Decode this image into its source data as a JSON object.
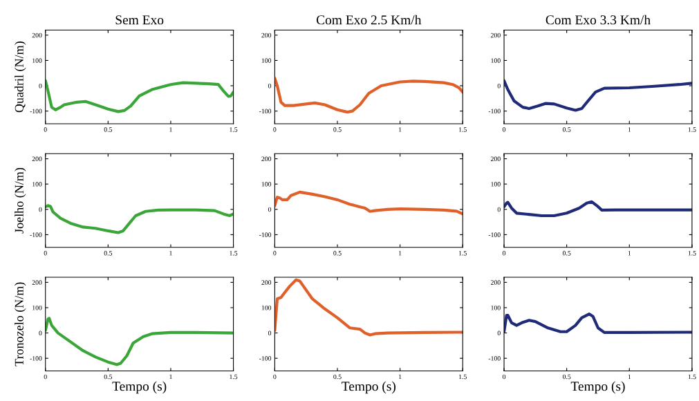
{
  "chart_data": [
    {
      "type": "line",
      "title": "Sem Exo",
      "ylabel": "Quadril (N/m)",
      "xlim": [
        0,
        1.5
      ],
      "ylim": [
        -150,
        220
      ],
      "xticks": [
        0,
        0.5,
        1,
        1.5
      ],
      "yticks": [
        -100,
        0,
        100,
        200
      ],
      "x": [
        0,
        0.02,
        0.05,
        0.08,
        0.12,
        0.15,
        0.25,
        0.32,
        0.4,
        0.5,
        0.58,
        0.63,
        0.68,
        0.75,
        0.85,
        1.0,
        1.1,
        1.2,
        1.3,
        1.38,
        1.42,
        1.46,
        1.48,
        1.5
      ],
      "series": [
        {
          "color": "#3aa63a",
          "values": [
            20,
            -20,
            -85,
            -95,
            -85,
            -75,
            -65,
            -62,
            -75,
            -92,
            -102,
            -98,
            -80,
            -40,
            -15,
            5,
            12,
            10,
            8,
            5,
            -20,
            -42,
            -40,
            -25
          ]
        }
      ]
    },
    {
      "type": "line",
      "title": "Com Exo 2.5 Km/h",
      "xlim": [
        0,
        1.5
      ],
      "ylim": [
        -150,
        220
      ],
      "xticks": [
        0,
        0.5,
        1,
        1.5
      ],
      "yticks": [
        -100,
        0,
        100,
        200
      ],
      "x": [
        0,
        0.02,
        0.05,
        0.08,
        0.15,
        0.25,
        0.32,
        0.4,
        0.5,
        0.58,
        0.62,
        0.68,
        0.75,
        0.85,
        1.0,
        1.1,
        1.2,
        1.35,
        1.42,
        1.47,
        1.5
      ],
      "series": [
        {
          "color": "#e0602a",
          "values": [
            30,
            0,
            -65,
            -78,
            -78,
            -72,
            -68,
            -75,
            -95,
            -104,
            -100,
            -75,
            -30,
            0,
            15,
            18,
            17,
            12,
            5,
            -8,
            -25
          ]
        }
      ]
    },
    {
      "type": "line",
      "title": "Com Exo 3.3 Km/h",
      "xlim": [
        0,
        1.5
      ],
      "ylim": [
        -150,
        220
      ],
      "xticks": [
        0,
        0.5,
        1,
        1.5
      ],
      "yticks": [
        -100,
        0,
        100,
        200
      ],
      "x": [
        0,
        0.03,
        0.08,
        0.15,
        0.2,
        0.27,
        0.33,
        0.4,
        0.5,
        0.57,
        0.62,
        0.67,
        0.73,
        0.8,
        1.0,
        1.2,
        1.4,
        1.5
      ],
      "series": [
        {
          "color": "#1f2a78",
          "values": [
            20,
            -15,
            -60,
            -85,
            -90,
            -80,
            -70,
            -72,
            -88,
            -97,
            -90,
            -60,
            -25,
            -10,
            -8,
            -2,
            5,
            10
          ]
        }
      ]
    },
    {
      "type": "line",
      "ylabel": "Joelho (N/m)",
      "xlim": [
        0,
        1.5
      ],
      "ylim": [
        -150,
        220
      ],
      "xticks": [
        0,
        0.5,
        1,
        1.5
      ],
      "yticks": [
        -100,
        0,
        100,
        200
      ],
      "x": [
        0,
        0.02,
        0.04,
        0.06,
        0.12,
        0.2,
        0.3,
        0.4,
        0.5,
        0.58,
        0.62,
        0.67,
        0.72,
        0.8,
        0.9,
        1.0,
        1.2,
        1.35,
        1.42,
        1.47,
        1.5
      ],
      "series": [
        {
          "color": "#3aa63a",
          "values": [
            10,
            15,
            12,
            -10,
            -35,
            -55,
            -70,
            -75,
            -85,
            -92,
            -85,
            -55,
            -25,
            -8,
            -3,
            -2,
            -2,
            -5,
            -18,
            -25,
            -18
          ]
        }
      ]
    },
    {
      "type": "line",
      "xlim": [
        0,
        1.5
      ],
      "ylim": [
        -150,
        220
      ],
      "xticks": [
        0,
        0.5,
        1,
        1.5
      ],
      "yticks": [
        -100,
        0,
        100,
        200
      ],
      "x": [
        0,
        0.02,
        0.04,
        0.06,
        0.1,
        0.13,
        0.2,
        0.3,
        0.4,
        0.5,
        0.6,
        0.68,
        0.72,
        0.76,
        0.8,
        0.9,
        1.0,
        1.2,
        1.35,
        1.45,
        1.5
      ],
      "series": [
        {
          "color": "#e0602a",
          "values": [
            15,
            48,
            45,
            38,
            38,
            55,
            68,
            60,
            50,
            38,
            20,
            10,
            5,
            -8,
            -5,
            0,
            2,
            0,
            -3,
            -7,
            -18
          ]
        }
      ]
    },
    {
      "type": "line",
      "xlim": [
        0,
        1.5
      ],
      "ylim": [
        -150,
        220
      ],
      "xticks": [
        0,
        0.5,
        1,
        1.5
      ],
      "yticks": [
        -100,
        0,
        100,
        200
      ],
      "x": [
        0,
        0.02,
        0.03,
        0.06,
        0.1,
        0.2,
        0.3,
        0.4,
        0.5,
        0.6,
        0.66,
        0.7,
        0.74,
        0.78,
        0.9,
        1.2,
        1.5
      ],
      "series": [
        {
          "color": "#1f2a78",
          "values": [
            10,
            25,
            28,
            5,
            -15,
            -20,
            -25,
            -25,
            -15,
            5,
            25,
            30,
            15,
            -3,
            -2,
            -2,
            -2
          ]
        }
      ]
    },
    {
      "type": "line",
      "ylabel": "Tronozelo (N/m)",
      "xlabel": "Tempo (s)",
      "xlim": [
        0,
        1.5
      ],
      "ylim": [
        -150,
        220
      ],
      "xticks": [
        0,
        0.5,
        1,
        1.5
      ],
      "yticks": [
        -100,
        0,
        100,
        200
      ],
      "x": [
        0,
        0.02,
        0.03,
        0.05,
        0.1,
        0.2,
        0.3,
        0.4,
        0.5,
        0.57,
        0.6,
        0.65,
        0.7,
        0.78,
        0.85,
        1.0,
        1.2,
        1.5
      ],
      "series": [
        {
          "color": "#3aa63a",
          "values": [
            10,
            55,
            58,
            30,
            0,
            -35,
            -70,
            -95,
            -115,
            -125,
            -120,
            -90,
            -40,
            -15,
            -3,
            2,
            2,
            0
          ]
        }
      ]
    },
    {
      "type": "line",
      "xlabel": "Tempo (s)",
      "xlim": [
        0,
        1.5
      ],
      "ylim": [
        -150,
        220
      ],
      "xticks": [
        0,
        0.5,
        1,
        1.5
      ],
      "yticks": [
        -100,
        0,
        100,
        200
      ],
      "x": [
        0,
        0.02,
        0.05,
        0.08,
        0.12,
        0.17,
        0.2,
        0.25,
        0.3,
        0.4,
        0.5,
        0.6,
        0.68,
        0.72,
        0.76,
        0.8,
        0.9,
        1.2,
        1.5
      ],
      "series": [
        {
          "color": "#e0602a",
          "values": [
            10,
            135,
            140,
            160,
            185,
            210,
            205,
            170,
            135,
            95,
            60,
            20,
            15,
            0,
            -8,
            -3,
            0,
            2,
            3
          ]
        }
      ]
    },
    {
      "type": "line",
      "xlabel": "Tempo (s)",
      "xlim": [
        0,
        1.5
      ],
      "ylim": [
        -150,
        220
      ],
      "xticks": [
        0,
        0.5,
        1,
        1.5
      ],
      "yticks": [
        -100,
        0,
        100,
        200
      ],
      "x": [
        0,
        0.02,
        0.03,
        0.06,
        0.1,
        0.15,
        0.2,
        0.25,
        0.35,
        0.45,
        0.5,
        0.57,
        0.62,
        0.68,
        0.71,
        0.75,
        0.8,
        1.0,
        1.5
      ],
      "series": [
        {
          "color": "#1f2a78",
          "values": [
            5,
            70,
            70,
            40,
            30,
            42,
            50,
            45,
            20,
            5,
            5,
            30,
            60,
            75,
            65,
            20,
            2,
            2,
            3
          ]
        }
      ]
    }
  ]
}
